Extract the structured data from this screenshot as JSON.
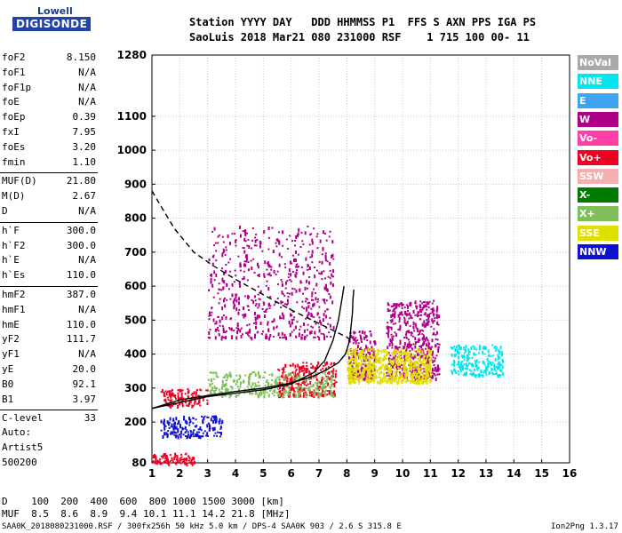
{
  "logo": {
    "top": "Lowell",
    "bottom": "DIGISONDE"
  },
  "header": {
    "line1": "Station YYYY DAY   DDD HHMMSS P1  FFS S AXN PPS IGA PS",
    "line2": "SaoLuis 2018 Mar21 080 231000 RSF    1 715 100 00- 11"
  },
  "params": [
    {
      "label": "foF2",
      "value": "8.150"
    },
    {
      "label": "foF1",
      "value": "N/A"
    },
    {
      "label": "foF1p",
      "value": "N/A"
    },
    {
      "label": "foE",
      "value": "N/A"
    },
    {
      "label": "foEp",
      "value": "0.39"
    },
    {
      "label": "fxI",
      "value": "7.95"
    },
    {
      "label": "foEs",
      "value": "3.20"
    },
    {
      "label": "fmin",
      "value": "1.10"
    },
    {
      "label": "MUF(D)",
      "value": "21.80"
    },
    {
      "label": "M(D)",
      "value": "2.67"
    },
    {
      "label": "D",
      "value": "N/A"
    },
    {
      "label": "h`F",
      "value": "300.0"
    },
    {
      "label": "h`F2",
      "value": "300.0"
    },
    {
      "label": "h`E",
      "value": "N/A"
    },
    {
      "label": "h`Es",
      "value": "110.0"
    },
    {
      "label": "hmF2",
      "value": "387.0"
    },
    {
      "label": "hmF1",
      "value": "N/A"
    },
    {
      "label": "hmE",
      "value": "110.0"
    },
    {
      "label": "yF2",
      "value": "111.7"
    },
    {
      "label": "yF1",
      "value": "N/A"
    },
    {
      "label": "yE",
      "value": "20.0"
    },
    {
      "label": "B0",
      "value": "92.1"
    },
    {
      "label": "B1",
      "value": "3.97"
    },
    {
      "label": "C-level",
      "value": "33"
    }
  ],
  "autoscaling": {
    "line1": "Auto:",
    "line2": "Artist5",
    "line3": "500200"
  },
  "legend": [
    {
      "label": "NoVal",
      "bg": "#a9a9a9",
      "fg": "#ffffff"
    },
    {
      "label": "NNE",
      "bg": "#00e5ee",
      "fg": "#ffffff"
    },
    {
      "label": "E",
      "bg": "#3ea3f0",
      "fg": "#ffffff"
    },
    {
      "label": "W",
      "bg": "#b0008a",
      "fg": "#ffffff"
    },
    {
      "label": "Vo-",
      "bg": "#ff3fa8",
      "fg": "#ffffff"
    },
    {
      "label": "Vo+",
      "bg": "#ee0020",
      "fg": "#ffffff"
    },
    {
      "label": "SSW",
      "bg": "#f4b0b0",
      "fg": "#ffffff"
    },
    {
      "label": "X-",
      "bg": "#007a00",
      "fg": "#ffffff"
    },
    {
      "label": "X+",
      "bg": "#7fbf5a",
      "fg": "#ffffff"
    },
    {
      "label": "SSE",
      "bg": "#e0e000",
      "fg": "#ffffff"
    },
    {
      "label": "NNW",
      "bg": "#1010d0",
      "fg": "#ffffff"
    }
  ],
  "bottom": {
    "d_row": "D    100  200  400  600  800 1000 1500 3000 [km]",
    "muf_row": "MUF  8.5  8.6  8.9  9.4 10.1 11.1 14.2 21.8 [MHz]",
    "footer_left": "SAA0K_2018080231000.RSF / 300fx256h 50 kHz 5.0 km / DPS-4 SAA0K 903 / 2.6 S 315.8 E",
    "footer_right": "Ion2Png 1.3.17"
  },
  "chart_data": {
    "type": "scatter",
    "x_ticks": [
      "1",
      "2",
      "3",
      "4",
      "5",
      "6",
      "7",
      "8",
      "9",
      "10",
      "11",
      "12",
      "13",
      "14",
      "15",
      "16"
    ],
    "y_ticks": [
      "80",
      "200",
      "300",
      "400",
      "500",
      "600",
      "700",
      "800",
      "900",
      "1000",
      "1100",
      "1280"
    ],
    "xlim": [
      1,
      16
    ],
    "ylim": [
      80,
      1280
    ],
    "grid": true,
    "series": [
      {
        "curve": "profile",
        "color": "#000000",
        "dash": false,
        "points": [
          [
            1.0,
            240
          ],
          [
            2.0,
            265
          ],
          [
            3.0,
            278
          ],
          [
            4.0,
            290
          ],
          [
            5.0,
            300
          ],
          [
            6.0,
            315
          ],
          [
            6.8,
            335
          ],
          [
            7.3,
            355
          ],
          [
            7.7,
            375
          ],
          [
            7.95,
            400
          ],
          [
            8.1,
            440
          ],
          [
            8.15,
            480
          ],
          [
            8.2,
            520
          ],
          [
            8.22,
            560
          ],
          [
            8.25,
            590
          ]
        ]
      },
      {
        "curve": "x_trace",
        "color": "#000000",
        "dash": false,
        "points": [
          [
            1.0,
            240
          ],
          [
            3.0,
            275
          ],
          [
            5.0,
            295
          ],
          [
            6.0,
            312
          ],
          [
            6.8,
            345
          ],
          [
            7.2,
            380
          ],
          [
            7.5,
            440
          ],
          [
            7.7,
            500
          ],
          [
            7.82,
            560
          ],
          [
            7.9,
            600
          ]
        ]
      },
      {
        "curve": "extrapolated",
        "color": "#000000",
        "dash": true,
        "points": [
          [
            1.0,
            880
          ],
          [
            1.8,
            770
          ],
          [
            2.5,
            700
          ],
          [
            3.2,
            660
          ],
          [
            4.0,
            620
          ],
          [
            5.0,
            575
          ],
          [
            6.0,
            530
          ],
          [
            7.0,
            490
          ],
          [
            8.0,
            450
          ],
          [
            8.15,
            440
          ]
        ]
      }
    ],
    "clusters": [
      {
        "label": "W",
        "x": [
          3,
          7.5
        ],
        "y": [
          450,
          780
        ],
        "n": 600
      },
      {
        "label": "W",
        "x": [
          9.4,
          11.3
        ],
        "y": [
          330,
          560
        ],
        "n": 500
      },
      {
        "label": "W",
        "x": [
          8.0,
          9.0
        ],
        "y": [
          330,
          470
        ],
        "n": 200
      },
      {
        "label": "SSE",
        "x": [
          8.0,
          11.0
        ],
        "y": [
          320,
          420
        ],
        "n": 600
      },
      {
        "label": "NNE",
        "x": [
          11.7,
          13.6
        ],
        "y": [
          340,
          430
        ],
        "n": 220
      },
      {
        "label": "Vo+",
        "x": [
          5.5,
          7.6
        ],
        "y": [
          280,
          380
        ],
        "n": 250
      },
      {
        "label": "Vo+",
        "x": [
          1.3,
          3.0
        ],
        "y": [
          250,
          300
        ],
        "n": 120
      },
      {
        "label": "NNW",
        "x": [
          1.3,
          3.5
        ],
        "y": [
          160,
          220
        ],
        "n": 150
      },
      {
        "label": "X+",
        "x": [
          3,
          7.5
        ],
        "y": [
          280,
          350
        ],
        "n": 300
      },
      {
        "label": "Vo+",
        "x": [
          1.0,
          2.5
        ],
        "y": [
          80,
          110
        ],
        "n": 80
      }
    ]
  }
}
